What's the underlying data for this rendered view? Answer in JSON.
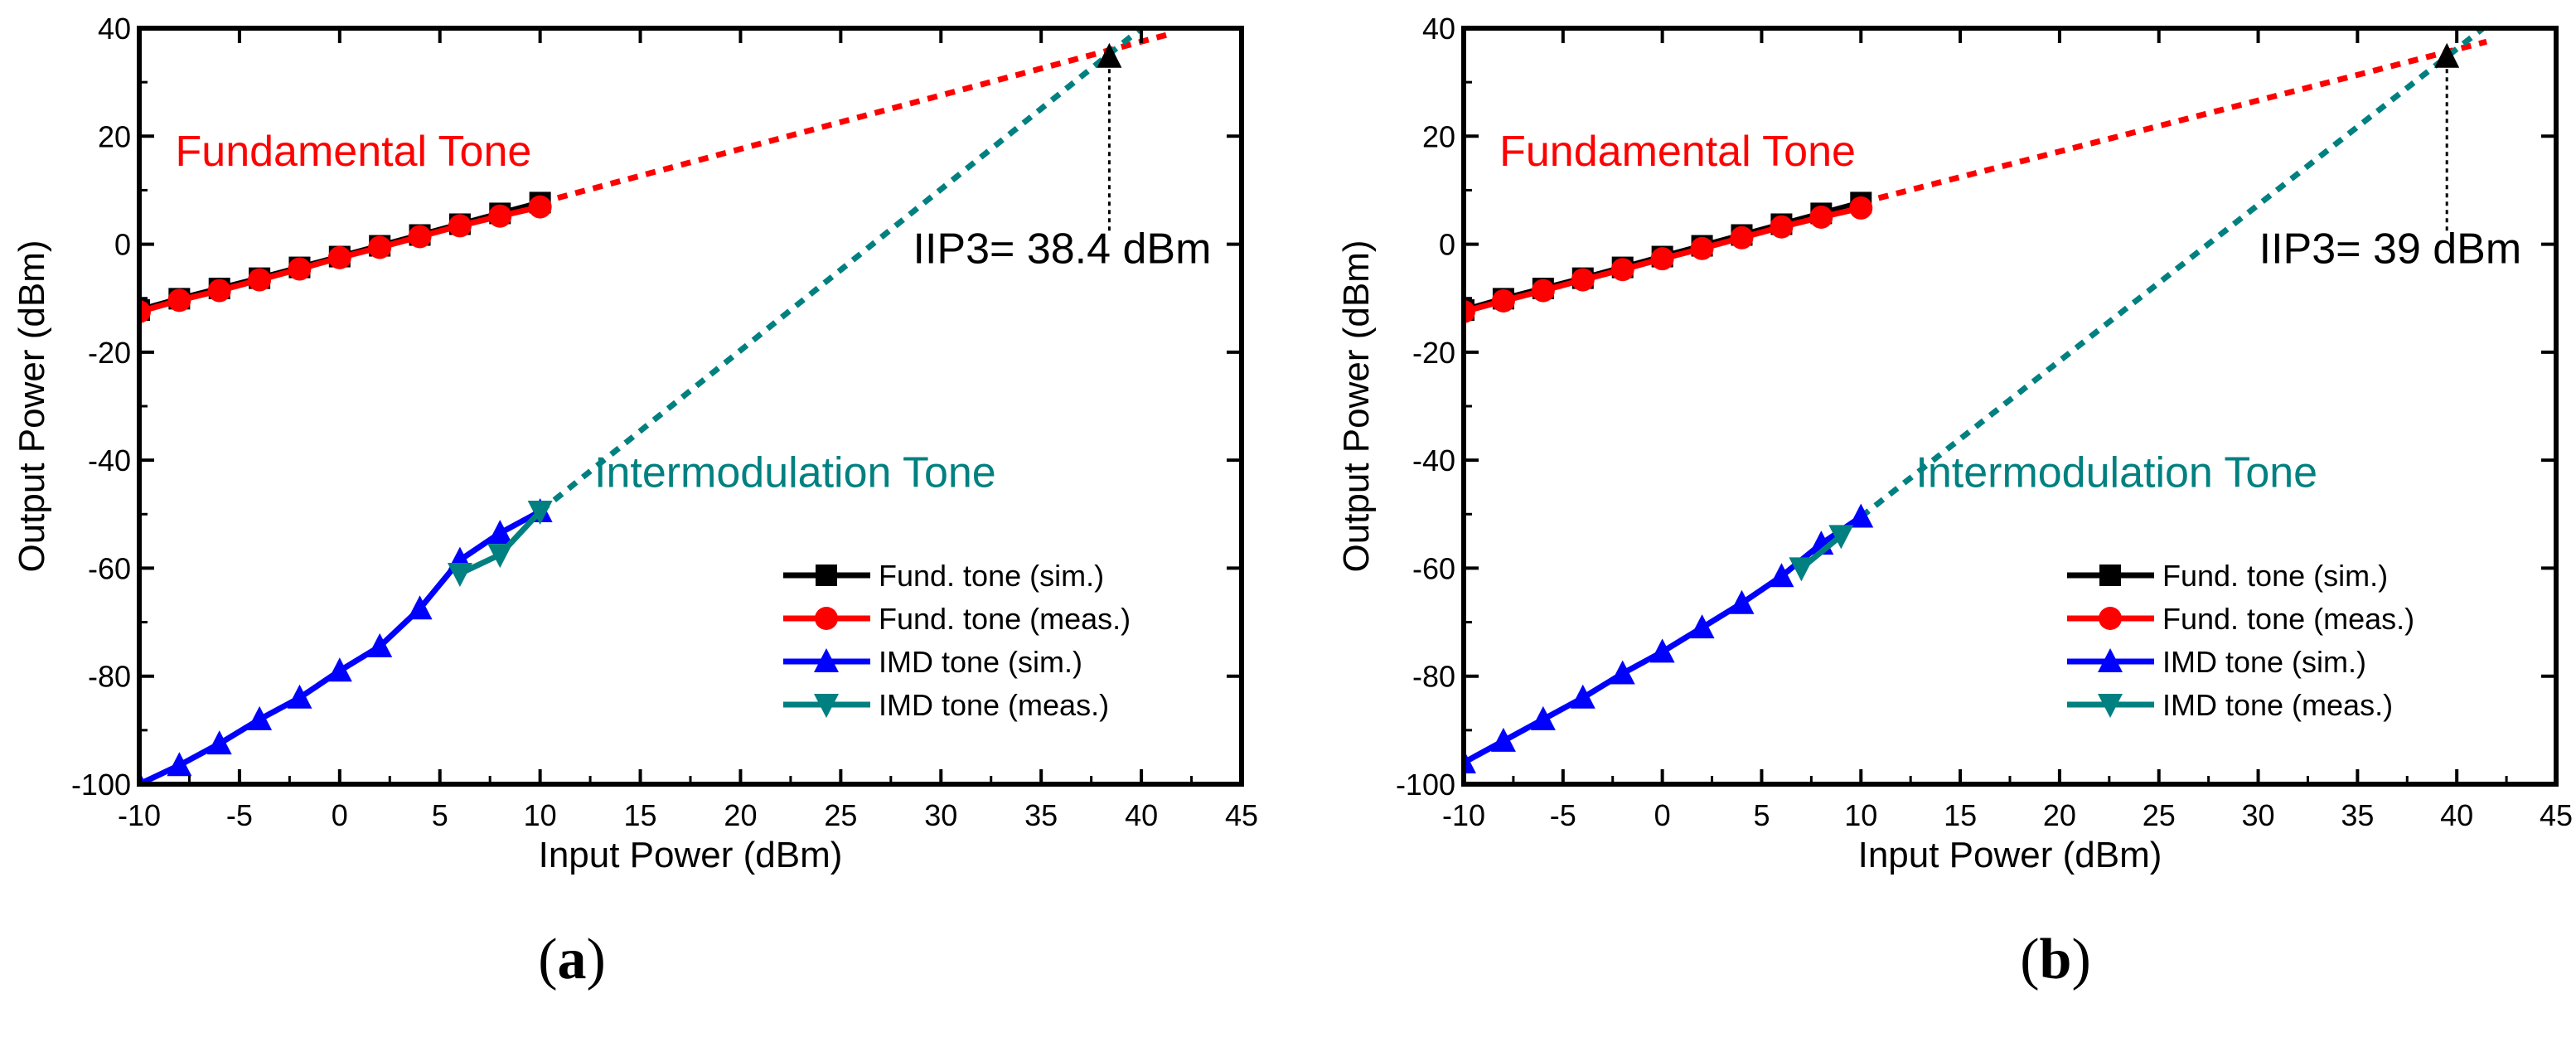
{
  "chart_data": [
    {
      "id": "a",
      "type": "line",
      "panel_label": "a",
      "xlabel": "Input Power (dBm)",
      "ylabel": "Output Power (dBm)",
      "xlim": [
        -10,
        45
      ],
      "ylim": [
        -100,
        40
      ],
      "xticks": [
        -10,
        -5,
        0,
        5,
        10,
        15,
        20,
        25,
        30,
        35,
        40,
        45
      ],
      "yticks": [
        -100,
        -80,
        -60,
        -40,
        -20,
        0,
        20,
        40
      ],
      "grid": false,
      "legend_position": "bottom-right",
      "series": [
        {
          "name": "Fund. tone (sim.)",
          "color": "#000000",
          "marker": "square",
          "x": [
            -10,
            -8,
            -6,
            -4,
            -2,
            0,
            2,
            4,
            6,
            8,
            10
          ],
          "y": [
            -12.2,
            -10.1,
            -8.2,
            -6.3,
            -4.3,
            -2.3,
            -0.3,
            1.7,
            3.7,
            5.7,
            7.7
          ]
        },
        {
          "name": "Fund. tone (meas.)",
          "color": "#ff0000",
          "marker": "circle",
          "x": [
            -10,
            -8,
            -6,
            -4,
            -2,
            0,
            2,
            4,
            6,
            8,
            10
          ],
          "y": [
            -12.5,
            -10.4,
            -8.6,
            -6.6,
            -4.6,
            -2.5,
            -0.6,
            1.4,
            3.4,
            5.2,
            6.9
          ]
        },
        {
          "name": "IMD tone (sim.)",
          "color": "#0000ff",
          "marker": "triangle-up",
          "x": [
            -10,
            -8,
            -6,
            -4,
            -2,
            0,
            2,
            4,
            6,
            8,
            10
          ],
          "y": [
            -100,
            -96.5,
            -92.5,
            -88,
            -84,
            -79,
            -74.5,
            -67.5,
            -58.5,
            -53.5,
            -49.5
          ]
        },
        {
          "name": "IMD tone (meas.)",
          "color": "#008080",
          "marker": "triangle-down",
          "x": [
            6,
            8,
            10
          ],
          "y": [
            -61,
            -57.5,
            -49.5
          ]
        }
      ],
      "extrapolations": [
        {
          "name": "fundamental-extrapolation",
          "color": "#ff0000",
          "x": [
            10,
            41.5
          ],
          "y": [
            7.7,
            39
          ]
        },
        {
          "name": "imd-extrapolation",
          "color": "#008080",
          "x": [
            10,
            40
          ],
          "y": [
            -49.5,
            40
          ]
        }
      ],
      "iip3_arrow": {
        "x": 38.4,
        "y_from": 2.5,
        "y_to": 36.5
      },
      "annotations": {
        "fundamental": "Fundamental Tone",
        "intermodulation": "Intermodulation Tone",
        "iip3": "IIP3= 38.4 dBm"
      }
    },
    {
      "id": "b",
      "type": "line",
      "panel_label": "b",
      "xlabel": "Input Power (dBm)",
      "ylabel": "Output Power (dBm)",
      "xlim": [
        -10,
        45
      ],
      "ylim": [
        -100,
        40
      ],
      "xticks": [
        -10,
        -5,
        0,
        5,
        10,
        15,
        20,
        25,
        30,
        35,
        40,
        45
      ],
      "yticks": [
        -100,
        -80,
        -60,
        -40,
        -20,
        0,
        20,
        40
      ],
      "grid": false,
      "legend_position": "bottom-right",
      "series": [
        {
          "name": "Fund. tone (sim.)",
          "color": "#000000",
          "marker": "square",
          "x": [
            -10,
            -8,
            -6,
            -4,
            -2,
            0,
            2,
            4,
            6,
            8,
            10
          ],
          "y": [
            -12.2,
            -10.1,
            -8.2,
            -6.3,
            -4.3,
            -2.3,
            -0.3,
            1.7,
            3.7,
            5.7,
            7.7
          ]
        },
        {
          "name": "Fund. tone (meas.)",
          "color": "#ff0000",
          "marker": "circle",
          "x": [
            -10,
            -8,
            -6,
            -4,
            -2,
            0,
            2,
            4,
            6,
            8,
            10
          ],
          "y": [
            -12.5,
            -10.5,
            -8.6,
            -6.6,
            -4.7,
            -2.7,
            -0.8,
            1.2,
            3.2,
            5,
            6.7
          ]
        },
        {
          "name": "IMD tone (sim.)",
          "color": "#0000ff",
          "marker": "triangle-up",
          "x": [
            -10,
            -8,
            -6,
            -4,
            -2,
            0,
            2,
            4,
            6,
            8,
            10
          ],
          "y": [
            -96,
            -92,
            -88,
            -84,
            -79.5,
            -75.5,
            -71,
            -66.5,
            -61.5,
            -55.5,
            -50.5
          ]
        },
        {
          "name": "IMD tone (meas.)",
          "color": "#008080",
          "marker": "triangle-down",
          "x": [
            7,
            9
          ],
          "y": [
            -60,
            -54
          ]
        }
      ],
      "extrapolations": [
        {
          "name": "fundamental-extrapolation",
          "color": "#ff0000",
          "x": [
            10,
            41.5
          ],
          "y": [
            7.7,
            37.5
          ]
        },
        {
          "name": "imd-extrapolation",
          "color": "#008080",
          "x": [
            10,
            41.5
          ],
          "y": [
            -50.5,
            40.5
          ]
        }
      ],
      "iip3_arrow": {
        "x": 39.5,
        "y_from": 2.5,
        "y_to": 36.5
      },
      "annotations": {
        "fundamental": "Fundamental Tone",
        "intermodulation": "Intermodulation Tone",
        "iip3": "IIP3= 39 dBm"
      }
    }
  ],
  "captions": {
    "a": "a",
    "b": "b"
  }
}
